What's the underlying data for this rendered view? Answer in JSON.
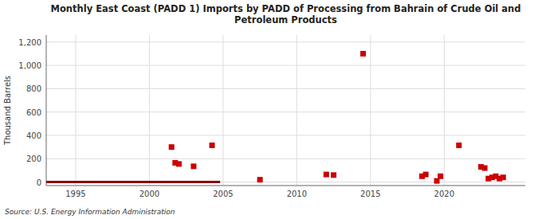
{
  "chart_data": {
    "type": "scatter",
    "title": "Monthly East Coast (PADD 1) Imports by PADD of Processing from Bahrain of Crude Oil and\nPetroleum Products",
    "ylabel": "Thousand Barrels",
    "source": "Source: U.S. Energy Information Administration",
    "xlim": [
      1993.0,
      2025.5
    ],
    "ylim": [
      -30,
      1260
    ],
    "xticks": [
      1995,
      2000,
      2005,
      2010,
      2015,
      2020
    ],
    "yticks": [
      0,
      200,
      400,
      600,
      800,
      {
        "value": 1000,
        "label": "1,000"
      },
      {
        "value": 1200,
        "label": "1,200"
      }
    ],
    "grid": true,
    "series": [
      {
        "type": "line",
        "color": "#8b0000",
        "x": [
          1993.0,
          2004.8
        ],
        "values": [
          0,
          0
        ]
      },
      {
        "type": "scatter",
        "color": "#cc0000",
        "marker": "square",
        "x": [
          2001.5,
          2001.75,
          2002.0,
          2003.0,
          2004.25,
          2007.5,
          2012.0,
          2012.5,
          2014.5,
          2018.5,
          2018.75,
          2019.5,
          2019.75,
          2021.0,
          2022.5,
          2022.75,
          2023.0,
          2023.25,
          2023.5,
          2023.75,
          2024.0
        ],
        "values": [
          300,
          165,
          155,
          135,
          315,
          20,
          65,
          60,
          1100,
          50,
          65,
          10,
          50,
          315,
          130,
          120,
          30,
          40,
          50,
          30,
          40
        ]
      }
    ]
  }
}
